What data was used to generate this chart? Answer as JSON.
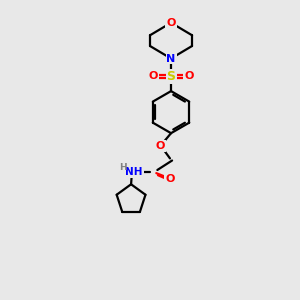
{
  "bg_color": "#e8e8e8",
  "atom_colors": {
    "C": "#000000",
    "N": "#0000ff",
    "O": "#ff0000",
    "S": "#cccc00",
    "H": "#808080"
  }
}
